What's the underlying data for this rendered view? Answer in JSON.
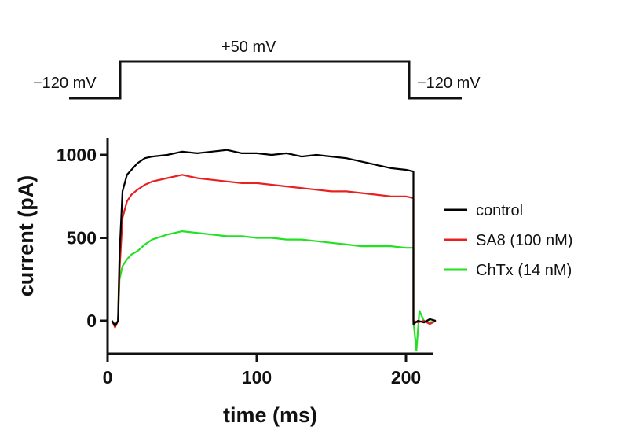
{
  "protocol": {
    "holding_label_left": "−120 mV",
    "step_label": "+50 mV",
    "holding_label_right": "−120 mV",
    "step_start_ms": 7,
    "step_end_ms": 205
  },
  "chart_data": {
    "type": "line",
    "title": "",
    "xlabel": "time (ms)",
    "ylabel": "current (pA)",
    "xlim": [
      0,
      220
    ],
    "ylim": [
      -200,
      1100
    ],
    "xticks": [
      0,
      100,
      200
    ],
    "xtick_labels": [
      "0",
      "100",
      "200"
    ],
    "yticks": [
      0,
      500,
      1000
    ],
    "ytick_labels": [
      "0",
      "500",
      "1000"
    ],
    "grid": false,
    "legend_position": "right",
    "series": [
      {
        "name": "control",
        "color": "#000000",
        "x": [
          3,
          5,
          7,
          8,
          10,
          13,
          16,
          20,
          25,
          30,
          40,
          50,
          60,
          70,
          80,
          90,
          100,
          110,
          120,
          130,
          140,
          150,
          160,
          170,
          180,
          190,
          200,
          205,
          205,
          208,
          212,
          216,
          220
        ],
        "y": [
          0,
          -30,
          0,
          400,
          780,
          880,
          910,
          950,
          980,
          990,
          1000,
          1020,
          1010,
          1020,
          1030,
          1010,
          1010,
          1000,
          1010,
          990,
          1000,
          990,
          980,
          960,
          940,
          920,
          910,
          900,
          -20,
          0,
          -10,
          10,
          0
        ]
      },
      {
        "name": "SA8 (100 nM)",
        "color": "#e82020",
        "x": [
          3,
          5,
          7,
          8,
          10,
          13,
          16,
          20,
          25,
          30,
          40,
          50,
          55,
          60,
          70,
          80,
          90,
          100,
          110,
          120,
          130,
          140,
          150,
          160,
          170,
          180,
          190,
          200,
          205,
          205,
          208,
          212,
          216,
          220
        ],
        "y": [
          0,
          -40,
          0,
          300,
          620,
          720,
          760,
          790,
          820,
          840,
          860,
          880,
          870,
          860,
          850,
          840,
          830,
          830,
          820,
          810,
          800,
          790,
          780,
          780,
          770,
          760,
          750,
          750,
          740,
          0,
          -10,
          0,
          -20,
          0
        ]
      },
      {
        "name": "ChTx (14 nM)",
        "color": "#22e022",
        "x": [
          3,
          5,
          7,
          8,
          10,
          13,
          16,
          20,
          25,
          30,
          40,
          50,
          60,
          70,
          80,
          90,
          100,
          110,
          120,
          130,
          140,
          150,
          160,
          170,
          180,
          190,
          200,
          205,
          205,
          207,
          209,
          212,
          216,
          220
        ],
        "y": [
          0,
          -30,
          0,
          250,
          330,
          370,
          400,
          420,
          460,
          490,
          520,
          540,
          530,
          520,
          510,
          510,
          500,
          500,
          490,
          490,
          480,
          470,
          460,
          450,
          450,
          450,
          440,
          440,
          0,
          -180,
          60,
          0,
          -10,
          0
        ]
      }
    ]
  }
}
